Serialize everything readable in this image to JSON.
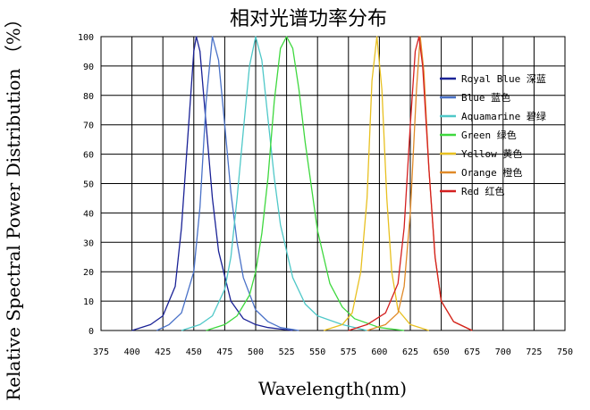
{
  "chart_data": {
    "type": "line",
    "title": "相对光谱功率分布",
    "xlabel": "Wavelength(nm)",
    "ylabel": "Relative Spectral Power Distribution （%）",
    "xlim": [
      375,
      750
    ],
    "ylim": [
      0,
      100
    ],
    "xticks": [
      "375",
      "400",
      "425",
      "450",
      "475",
      "500",
      "525",
      "550",
      "575",
      "600",
      "625",
      "650",
      "675",
      "700",
      "725",
      "750"
    ],
    "yticks": [
      "0",
      "10",
      "20",
      "30",
      "40",
      "50",
      "60",
      "70",
      "80",
      "90",
      "100"
    ],
    "grid": true,
    "legend_position": "top-right",
    "series": [
      {
        "name": "Royal Blue 深蓝",
        "color": "#1a2296",
        "x": [
          400,
          415,
          425,
          435,
          440,
          445,
          450,
          452,
          455,
          460,
          465,
          470,
          480,
          490,
          500,
          510,
          520,
          530
        ],
        "y": [
          0,
          2,
          5,
          15,
          35,
          65,
          95,
          100,
          95,
          70,
          45,
          27,
          10,
          4,
          2,
          1,
          0.5,
          0
        ]
      },
      {
        "name": "Blue 蓝色",
        "color": "#4a72c8",
        "x": [
          420,
          430,
          440,
          450,
          455,
          460,
          465,
          470,
          475,
          480,
          485,
          490,
          500,
          510,
          520,
          535
        ],
        "y": [
          0,
          2,
          6,
          20,
          42,
          78,
          100,
          92,
          70,
          47,
          30,
          18,
          7,
          3,
          1,
          0
        ]
      },
      {
        "name": "Aquamarine 碧绿",
        "color": "#4fc8c8",
        "x": [
          440,
          455,
          465,
          475,
          480,
          485,
          490,
          495,
          500,
          505,
          510,
          515,
          520,
          530,
          540,
          550,
          570,
          590
        ],
        "y": [
          0,
          2,
          5,
          14,
          25,
          45,
          68,
          90,
          100,
          92,
          72,
          52,
          36,
          18,
          9,
          5,
          2,
          0
        ]
      },
      {
        "name": "Green 绿色",
        "color": "#3ed83e",
        "x": [
          460,
          475,
          485,
          495,
          500,
          505,
          510,
          515,
          520,
          525,
          530,
          535,
          540,
          550,
          560,
          570,
          580,
          600,
          620
        ],
        "y": [
          0,
          2,
          5,
          12,
          20,
          33,
          52,
          78,
          96,
          100,
          96,
          82,
          64,
          34,
          16,
          8,
          4,
          1,
          0
        ]
      },
      {
        "name": "Yellow 黄色",
        "color": "#e8c020",
        "x": [
          555,
          570,
          578,
          585,
          590,
          594,
          598,
          602,
          606,
          610,
          615,
          625,
          640
        ],
        "y": [
          0,
          2,
          6,
          20,
          45,
          85,
          100,
          82,
          45,
          20,
          7,
          2,
          0
        ]
      },
      {
        "name": "Orange 橙色",
        "color": "#e08a28",
        "x": [
          590,
          605,
          615,
          620,
          625,
          630,
          633,
          636,
          640,
          645,
          650,
          660,
          675
        ],
        "y": [
          0,
          2,
          6,
          15,
          40,
          82,
          100,
          88,
          55,
          25,
          10,
          3,
          0
        ]
      },
      {
        "name": "Red 红色",
        "color": "#d42020",
        "x": [
          575,
          590,
          605,
          615,
          620,
          625,
          629,
          632,
          635,
          640,
          645,
          650,
          660,
          675
        ],
        "y": [
          0,
          2,
          6,
          16,
          35,
          70,
          95,
          100,
          90,
          55,
          25,
          10,
          3,
          0
        ]
      }
    ]
  }
}
